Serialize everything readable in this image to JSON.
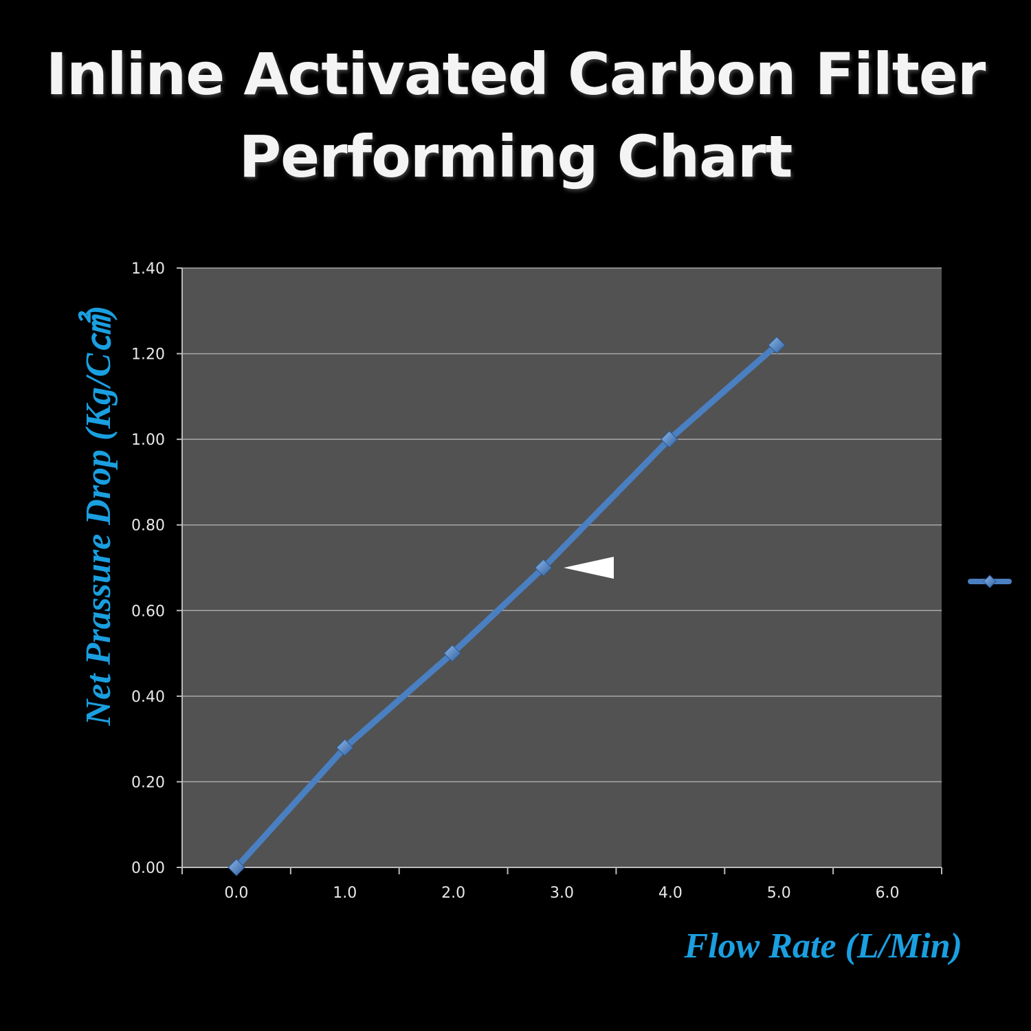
{
  "title_lines": [
    "Inline Activated Carbon Filter",
    "Performing Chart"
  ],
  "colors": {
    "background": "#000000",
    "plot_area": "#525252",
    "gridline": "#a8a8a8",
    "series": "#4a7fc1",
    "axis_title": "#1a9fe0",
    "title": "#f4f4f4"
  },
  "chart_data": {
    "type": "line",
    "title": "Inline Activated Carbon Filter Performing Chart",
    "xlabel": "Flow Rate (L/Min)",
    "ylabel": "Net Prassure Drop (Kg/C㎠)",
    "xlim": [
      -0.5,
      6.5
    ],
    "ylim": [
      0,
      1.4
    ],
    "x_ticks": [
      "0.0",
      "1.0",
      "2.0",
      "3.0",
      "4.0",
      "5.0",
      "6.0"
    ],
    "y_ticks": [
      "0.00",
      "0.20",
      "0.40",
      "0.60",
      "0.80",
      "1.00",
      "1.20",
      "1.40"
    ],
    "grid": true,
    "legend": "right",
    "series": [
      {
        "x": [
          0.0,
          1.0,
          1.99,
          2.83,
          3.99,
          4.98
        ],
        "values": [
          0.0,
          0.28,
          0.5,
          0.7,
          1.0,
          1.22
        ]
      }
    ]
  }
}
